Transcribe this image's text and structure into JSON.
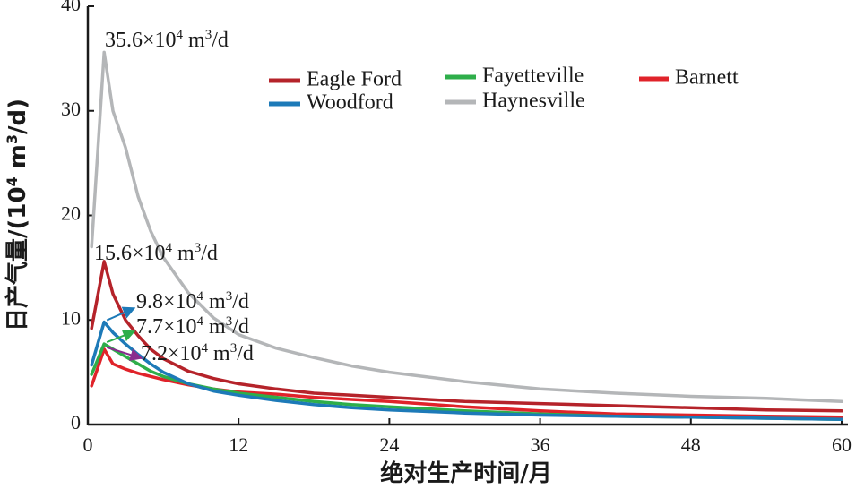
{
  "chart_data": {
    "type": "line",
    "title": "",
    "xlabel": "绝对生产时间/月",
    "ylabel_parts": {
      "prefix": "日产气量/(10",
      "sup1": "4",
      "mid": " m",
      "sup2": "3",
      "suffix": "/d)"
    },
    "xlim": [
      0,
      60.5
    ],
    "ylim": [
      0,
      40
    ],
    "xticks": [
      0,
      12,
      24,
      36,
      48,
      60
    ],
    "yticks": [
      0,
      10,
      20,
      30,
      40
    ],
    "legend_position": "top-right",
    "series": [
      {
        "name": "Eagle Ford",
        "color": "#b5232a",
        "x": [
          0.3,
          1.3,
          2,
          3,
          4,
          5,
          6,
          8,
          10,
          12,
          15,
          18,
          21,
          24,
          30,
          36,
          42,
          48,
          54,
          60
        ],
        "y": [
          9.2,
          15.6,
          12.5,
          10,
          8.5,
          7.2,
          6.3,
          5.1,
          4.4,
          3.9,
          3.4,
          3.0,
          2.8,
          2.6,
          2.2,
          2.0,
          1.8,
          1.6,
          1.4,
          1.3
        ]
      },
      {
        "name": "Fayetteville",
        "color": "#2eae4a",
        "x": [
          0.3,
          1.3,
          2,
          3,
          4,
          5,
          6,
          8,
          10,
          12,
          15,
          18,
          21,
          24,
          30,
          36,
          42,
          48,
          54,
          60
        ],
        "y": [
          4.8,
          7.7,
          7.2,
          6.5,
          5.8,
          5.1,
          4.6,
          3.9,
          3.4,
          3.0,
          2.6,
          2.2,
          1.9,
          1.7,
          1.3,
          1.0,
          0.8,
          0.7,
          0.6,
          0.5
        ]
      },
      {
        "name": "Barnett",
        "color": "#e0232a",
        "x": [
          0.3,
          1.3,
          2,
          3,
          4,
          5,
          6,
          8,
          10,
          12,
          15,
          18,
          21,
          24,
          30,
          36,
          42,
          48,
          54,
          60
        ],
        "y": [
          3.7,
          7.2,
          5.8,
          5.3,
          4.9,
          4.6,
          4.3,
          3.8,
          3.4,
          3.1,
          2.9,
          2.6,
          2.4,
          2.2,
          1.7,
          1.3,
          1.0,
          0.9,
          0.8,
          0.7
        ]
      },
      {
        "name": "Woodford",
        "color": "#1d7ab8",
        "x": [
          0.3,
          1.3,
          2,
          3,
          4,
          5,
          6,
          8,
          10,
          12,
          15,
          18,
          21,
          24,
          30,
          36,
          42,
          48,
          54,
          60
        ],
        "y": [
          5.7,
          9.8,
          8.8,
          7.7,
          6.7,
          5.8,
          5.0,
          3.9,
          3.2,
          2.8,
          2.3,
          1.9,
          1.6,
          1.4,
          1.1,
          0.9,
          0.8,
          0.7,
          0.6,
          0.5
        ]
      },
      {
        "name": "Haynesville",
        "color": "#b4b6b8",
        "x": [
          0.3,
          1.3,
          2,
          3,
          4,
          5,
          6,
          8,
          10,
          12,
          15,
          18,
          21,
          24,
          30,
          36,
          42,
          48,
          54,
          60
        ],
        "y": [
          17,
          35.6,
          30,
          26.5,
          21.8,
          18.5,
          16,
          12.6,
          10.2,
          8.6,
          7.3,
          6.4,
          5.6,
          5.0,
          4.1,
          3.4,
          3.0,
          2.7,
          2.5,
          2.2
        ]
      }
    ],
    "annotations": [
      {
        "value": "35.6",
        "series": "Haynesville",
        "x": 1.3,
        "y": 35.6,
        "arrow": false
      },
      {
        "value": "15.6",
        "series": "Eagle Ford",
        "x": 1.3,
        "y": 15.6,
        "arrow": false
      },
      {
        "value": "9.8",
        "series": "Woodford",
        "x": 1.3,
        "y": 9.8,
        "arrow": true
      },
      {
        "value": "7.7",
        "series": "Fayetteville",
        "x": 1.3,
        "y": 7.7,
        "arrow": true
      },
      {
        "value": "7.2",
        "series": "Barnett",
        "x": 1.3,
        "y": 7.2,
        "arrow": true
      }
    ],
    "annotation_unit": {
      "times": "×10",
      "sup1": "4",
      "mid": " m",
      "sup2": "3",
      "suffix": "/d"
    }
  }
}
